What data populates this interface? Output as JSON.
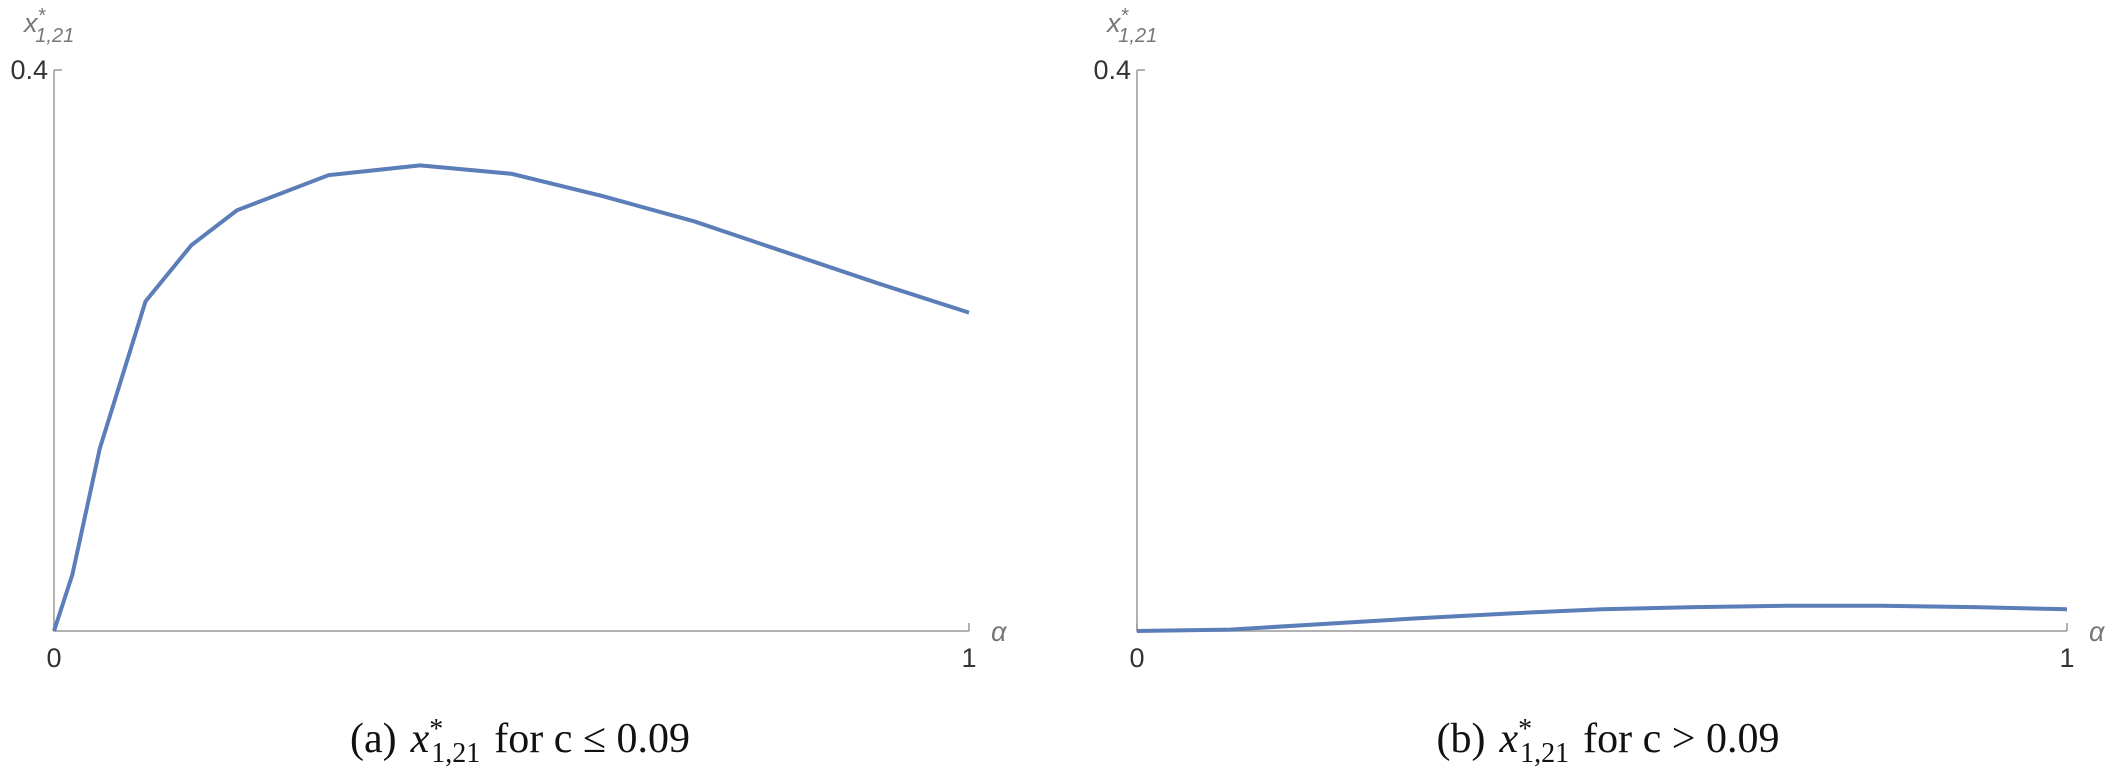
{
  "chart_data": [
    {
      "type": "line",
      "y_label": {
        "base": "x",
        "sup": "*",
        "sub": "1,21"
      },
      "x_label": "α",
      "x": [
        0,
        0.02,
        0.05,
        0.1,
        0.15,
        0.2,
        0.3,
        0.4,
        0.5,
        0.6,
        0.7,
        0.8,
        0.9,
        1.0
      ],
      "values": [
        0,
        0.04,
        0.13,
        0.235,
        0.275,
        0.3,
        0.325,
        0.332,
        0.326,
        0.31,
        0.292,
        0.27,
        0.248,
        0.227
      ],
      "color": "#5b7db8",
      "xlim": [
        0,
        1
      ],
      "ylim": [
        0,
        0.4
      ],
      "xticks": [
        0,
        1
      ],
      "yticks": [
        0.4
      ],
      "caption": {
        "label": "(a)",
        "base": "x",
        "sup": "*",
        "sub": "1,21",
        "text": "for c ≤ 0.09"
      }
    },
    {
      "type": "line",
      "y_label": {
        "base": "x",
        "sup": "*",
        "sub": "1,21"
      },
      "x_label": "α",
      "x": [
        0,
        0.1,
        0.2,
        0.3,
        0.4,
        0.5,
        0.6,
        0.7,
        0.8,
        0.9,
        1.0
      ],
      "values": [
        0,
        0.001,
        0.005,
        0.009,
        0.0125,
        0.0155,
        0.017,
        0.018,
        0.018,
        0.017,
        0.0155
      ],
      "color": "#5b7db8",
      "xlim": [
        0,
        1
      ],
      "ylim": [
        0,
        0.4
      ],
      "xticks": [
        0,
        1
      ],
      "yticks": [
        0.4
      ],
      "caption": {
        "label": "(b)",
        "base": "x",
        "sup": "*",
        "sub": "1,21",
        "text": "for c > 0.09"
      }
    }
  ]
}
